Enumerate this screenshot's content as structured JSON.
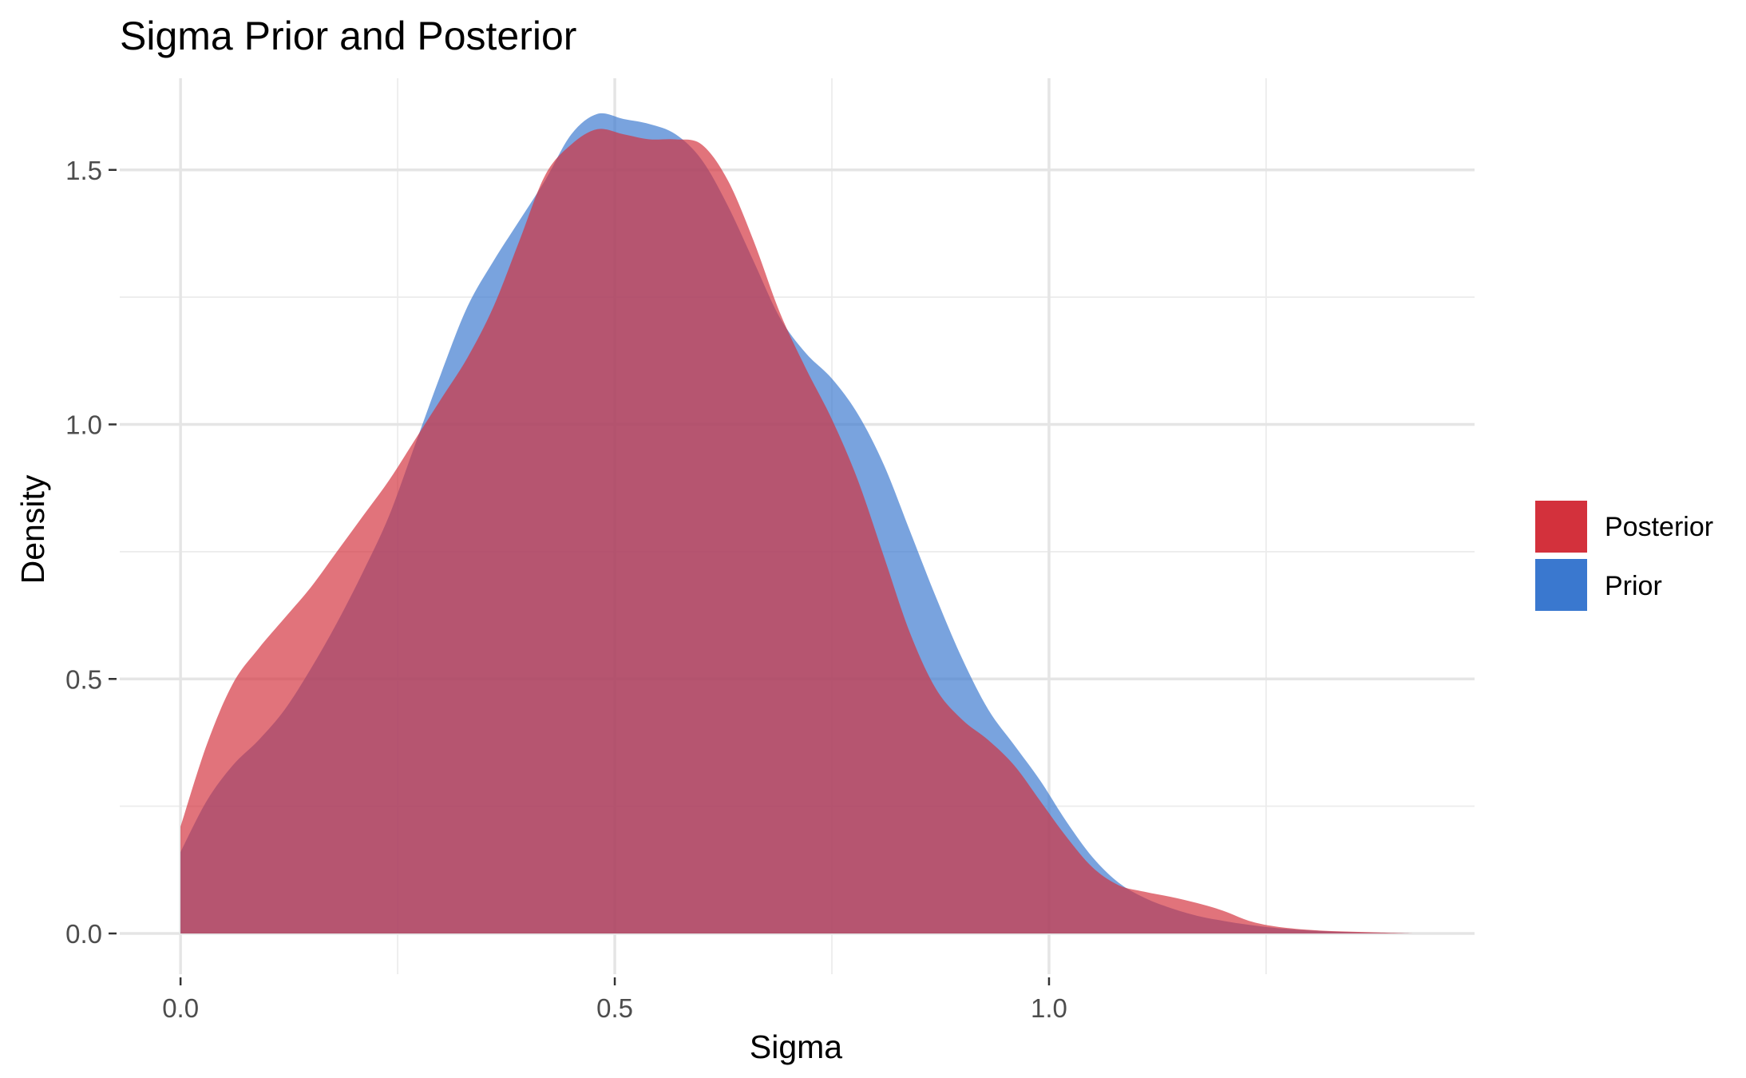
{
  "chart_data": {
    "type": "area",
    "title": "Sigma Prior and Posterior",
    "xlabel": "Sigma",
    "ylabel": "Density",
    "xlim": [
      -0.07,
      1.49
    ],
    "ylim": [
      -0.08,
      1.68
    ],
    "x_ticks": [
      "0.0",
      "0.5",
      "1.0"
    ],
    "y_ticks": [
      "0.0",
      "0.5",
      "1.0",
      "1.5"
    ],
    "grid": true,
    "legend_position": "right",
    "legend": {
      "entries": [
        {
          "label": "Posterior",
          "color": "#d3313c"
        },
        {
          "label": "Prior",
          "color": "#3a78cf"
        }
      ]
    },
    "series": [
      {
        "name": "Prior",
        "color": "#3a78cf",
        "points": [
          [
            0.0,
            0.16
          ],
          [
            0.03,
            0.26
          ],
          [
            0.06,
            0.33
          ],
          [
            0.09,
            0.38
          ],
          [
            0.12,
            0.44
          ],
          [
            0.15,
            0.52
          ],
          [
            0.18,
            0.61
          ],
          [
            0.21,
            0.71
          ],
          [
            0.24,
            0.82
          ],
          [
            0.27,
            0.96
          ],
          [
            0.3,
            1.1
          ],
          [
            0.33,
            1.23
          ],
          [
            0.36,
            1.32
          ],
          [
            0.39,
            1.4
          ],
          [
            0.42,
            1.48
          ],
          [
            0.45,
            1.57
          ],
          [
            0.48,
            1.61
          ],
          [
            0.51,
            1.6
          ],
          [
            0.54,
            1.59
          ],
          [
            0.57,
            1.57
          ],
          [
            0.6,
            1.52
          ],
          [
            0.63,
            1.43
          ],
          [
            0.66,
            1.32
          ],
          [
            0.69,
            1.21
          ],
          [
            0.72,
            1.14
          ],
          [
            0.75,
            1.09
          ],
          [
            0.78,
            1.02
          ],
          [
            0.81,
            0.92
          ],
          [
            0.84,
            0.79
          ],
          [
            0.87,
            0.66
          ],
          [
            0.9,
            0.54
          ],
          [
            0.93,
            0.44
          ],
          [
            0.96,
            0.37
          ],
          [
            0.99,
            0.3
          ],
          [
            1.02,
            0.22
          ],
          [
            1.05,
            0.15
          ],
          [
            1.08,
            0.1
          ],
          [
            1.11,
            0.07
          ],
          [
            1.14,
            0.05
          ],
          [
            1.17,
            0.035
          ],
          [
            1.2,
            0.025
          ],
          [
            1.23,
            0.017
          ],
          [
            1.26,
            0.011
          ],
          [
            1.3,
            0.006
          ],
          [
            1.34,
            0.003
          ],
          [
            1.38,
            0.001
          ],
          [
            1.42,
            0.0
          ]
        ]
      },
      {
        "name": "Posterior",
        "color": "#d3313c",
        "points": [
          [
            0.0,
            0.21
          ],
          [
            0.03,
            0.37
          ],
          [
            0.06,
            0.49
          ],
          [
            0.09,
            0.56
          ],
          [
            0.12,
            0.62
          ],
          [
            0.15,
            0.68
          ],
          [
            0.18,
            0.75
          ],
          [
            0.21,
            0.82
          ],
          [
            0.24,
            0.89
          ],
          [
            0.27,
            0.97
          ],
          [
            0.3,
            1.05
          ],
          [
            0.33,
            1.13
          ],
          [
            0.36,
            1.23
          ],
          [
            0.39,
            1.36
          ],
          [
            0.42,
            1.49
          ],
          [
            0.45,
            1.55
          ],
          [
            0.48,
            1.58
          ],
          [
            0.51,
            1.57
          ],
          [
            0.54,
            1.56
          ],
          [
            0.57,
            1.56
          ],
          [
            0.6,
            1.55
          ],
          [
            0.63,
            1.48
          ],
          [
            0.66,
            1.36
          ],
          [
            0.69,
            1.22
          ],
          [
            0.72,
            1.11
          ],
          [
            0.75,
            1.01
          ],
          [
            0.78,
            0.89
          ],
          [
            0.81,
            0.74
          ],
          [
            0.84,
            0.59
          ],
          [
            0.87,
            0.48
          ],
          [
            0.9,
            0.42
          ],
          [
            0.93,
            0.38
          ],
          [
            0.96,
            0.33
          ],
          [
            0.99,
            0.26
          ],
          [
            1.02,
            0.19
          ],
          [
            1.05,
            0.13
          ],
          [
            1.08,
            0.095
          ],
          [
            1.11,
            0.082
          ],
          [
            1.14,
            0.072
          ],
          [
            1.17,
            0.06
          ],
          [
            1.2,
            0.045
          ],
          [
            1.23,
            0.025
          ],
          [
            1.26,
            0.014
          ],
          [
            1.3,
            0.007
          ],
          [
            1.34,
            0.004
          ],
          [
            1.38,
            0.002
          ],
          [
            1.42,
            0.0
          ]
        ]
      }
    ]
  }
}
